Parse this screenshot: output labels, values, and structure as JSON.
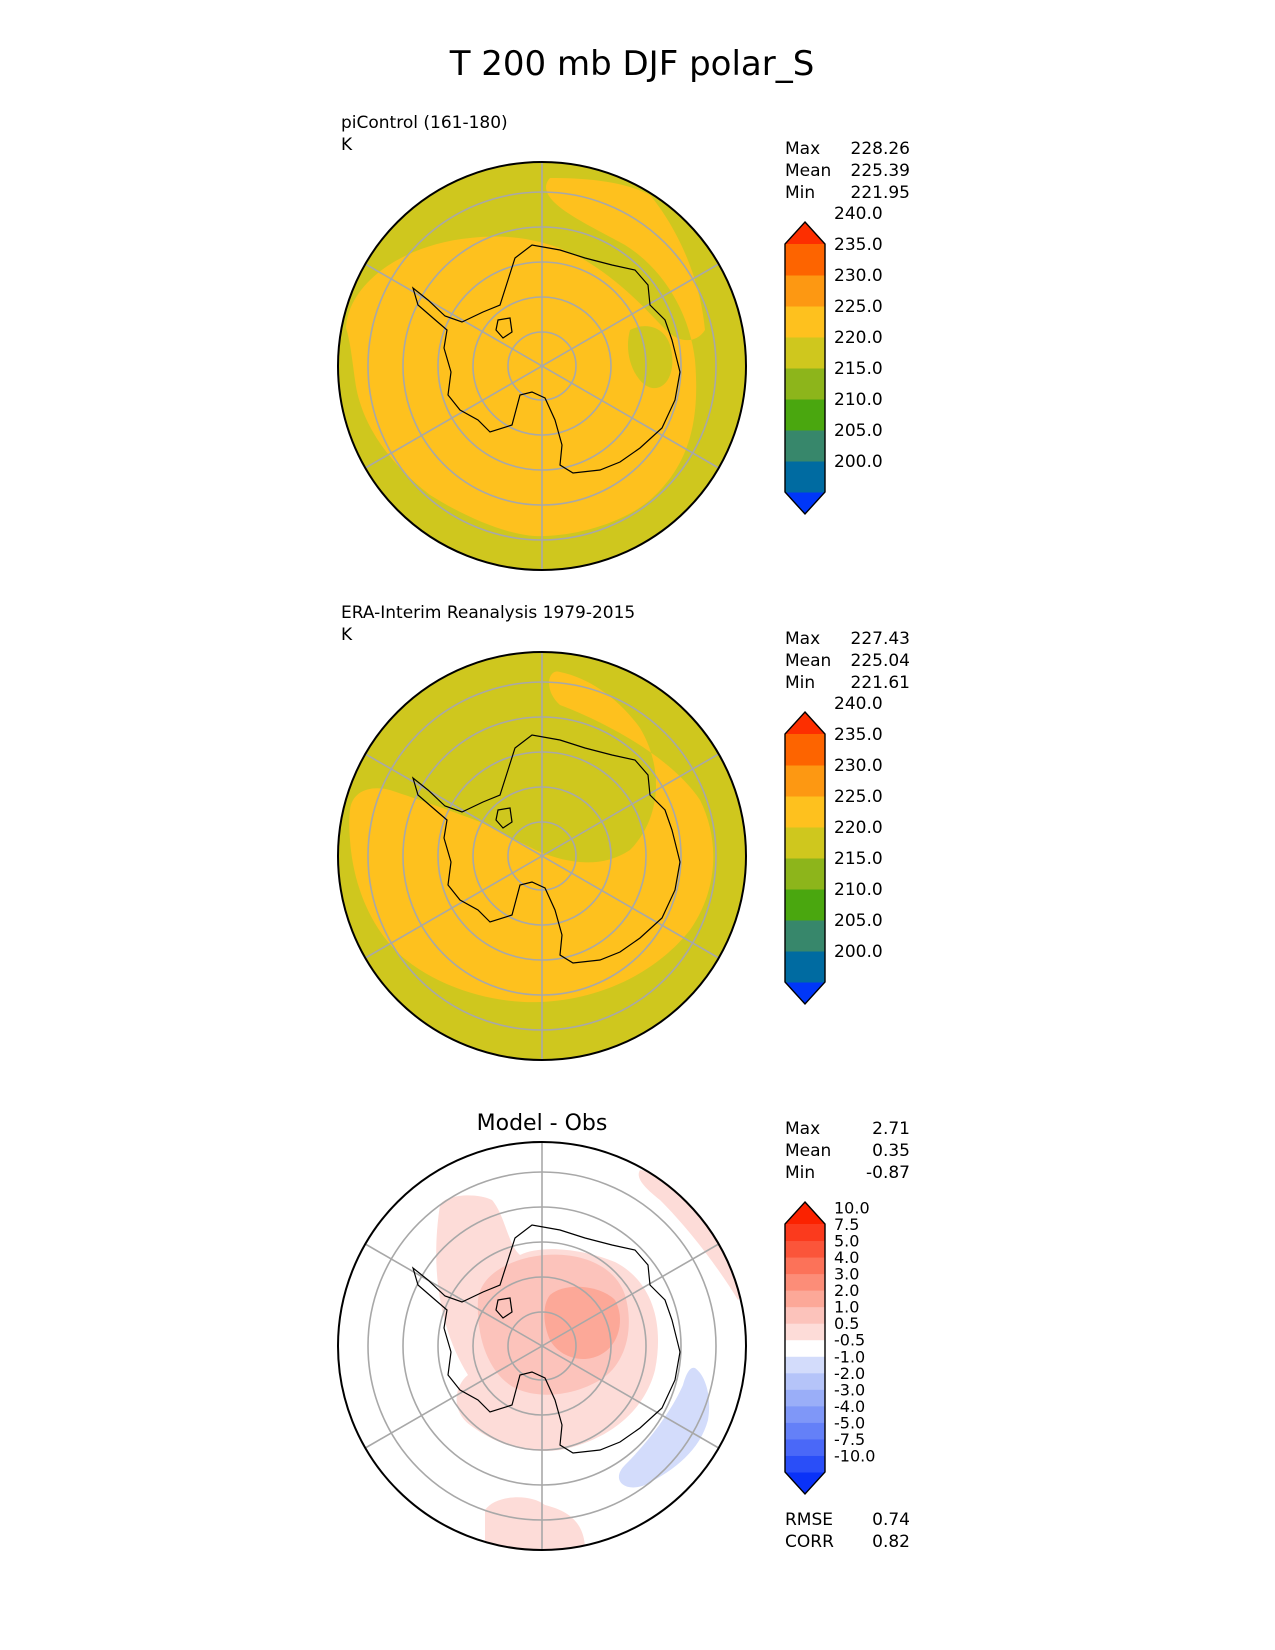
{
  "figure_title": "T 200 mb DJF polar_S",
  "chart_data": [
    {
      "type": "heatmap",
      "projection": "south polar stereographic",
      "title": "",
      "subtitle": "piControl (161-180)",
      "units": "K",
      "stats": [
        {
          "label": "Max",
          "value": "228.26"
        },
        {
          "label": "Mean",
          "value": "225.39"
        },
        {
          "label": "Min",
          "value": "221.95"
        }
      ],
      "colorbar": {
        "extend": "both",
        "levels": [
          200,
          205,
          210,
          215,
          220,
          225,
          230,
          235,
          240
        ],
        "tick_labels": [
          "200.0",
          "205.0",
          "210.0",
          "215.0",
          "220.0",
          "225.0",
          "230.0",
          "235.0",
          "240.0"
        ],
        "colors": [
          "#0037f8",
          "#006ba1",
          "#37876b",
          "#4aa70f",
          "#8db51b",
          "#cfc71e",
          "#fec11e",
          "#fd9812",
          "#fd6400",
          "#fd2f00"
        ]
      },
      "fill_levels": {
        "outer_ring": "220.0-225.0",
        "interior": "225.0-230.0"
      }
    },
    {
      "type": "heatmap",
      "projection": "south polar stereographic",
      "title": "",
      "subtitle": "ERA-Interim Reanalysis 1979-2015",
      "units": "K",
      "stats": [
        {
          "label": "Max",
          "value": "227.43"
        },
        {
          "label": "Mean",
          "value": "225.04"
        },
        {
          "label": "Min",
          "value": "221.61"
        }
      ],
      "colorbar": {
        "extend": "both",
        "levels": [
          200,
          205,
          210,
          215,
          220,
          225,
          230,
          235,
          240
        ],
        "tick_labels": [
          "200.0",
          "205.0",
          "210.0",
          "215.0",
          "220.0",
          "225.0",
          "230.0",
          "235.0",
          "240.0"
        ],
        "colors": [
          "#0037f8",
          "#006ba1",
          "#37876b",
          "#4aa70f",
          "#8db51b",
          "#cfc71e",
          "#fec11e",
          "#fd9812",
          "#fd6400",
          "#fd2f00"
        ]
      },
      "fill_levels": {
        "outer_ring": "220.0-225.0",
        "interior": "225.0-230.0"
      }
    },
    {
      "type": "heatmap",
      "projection": "south polar stereographic",
      "title": "Model - Obs",
      "subtitle": "",
      "units": "",
      "stats": [
        {
          "label": "Max",
          "value": "2.71"
        },
        {
          "label": "Mean",
          "value": "0.35"
        },
        {
          "label": "Min",
          "value": "-0.87"
        }
      ],
      "extra_stats": [
        {
          "label": "RMSE",
          "value": "0.74"
        },
        {
          "label": "CORR",
          "value": "0.82"
        }
      ],
      "colorbar": {
        "extend": "both",
        "levels": [
          -10,
          -7.5,
          -5,
          -4,
          -3,
          -2,
          -1,
          -0.5,
          0.5,
          1,
          2,
          3,
          4,
          5,
          7.5,
          10
        ],
        "tick_labels": [
          "-10.0",
          "-7.5",
          "-5.0",
          "-4.0",
          "-3.0",
          "-2.0",
          "-1.0",
          "-0.5",
          "0.5",
          "1.0",
          "2.0",
          "3.0",
          "4.0",
          "5.0",
          "7.5",
          "10.0"
        ],
        "colors": [
          "#0a32f8",
          "#2a4ef8",
          "#4a68f8",
          "#6480f8",
          "#7f97f8",
          "#9aaef8",
          "#b5c4f9",
          "#d3dcfb",
          "#ffffff",
          "#fddcd8",
          "#fcc3bb",
          "#fca898",
          "#fc8d78",
          "#fc7259",
          "#fb553a",
          "#fb3a1d",
          "#fb2200"
        ]
      }
    }
  ]
}
